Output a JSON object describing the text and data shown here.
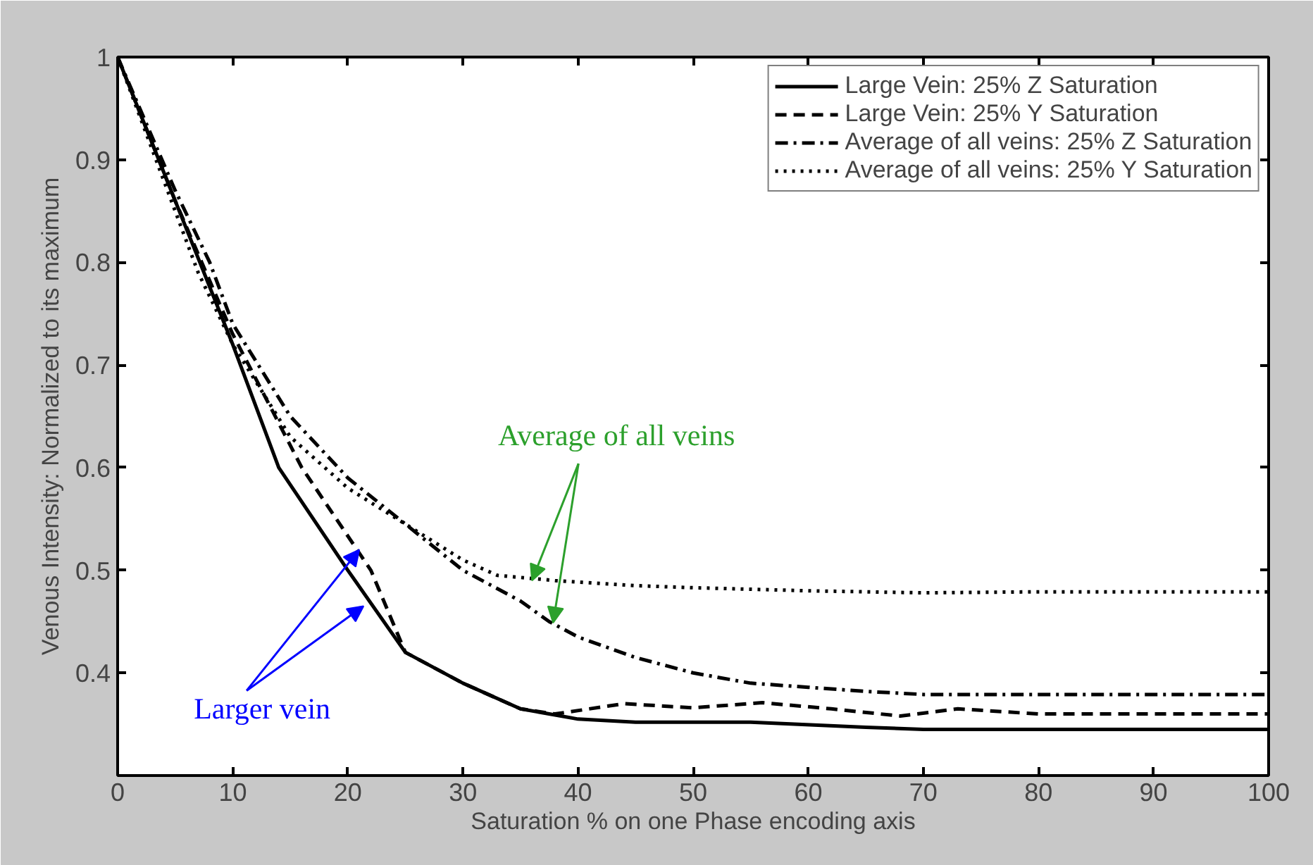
{
  "chart_data": {
    "type": "line",
    "xlabel": "Saturation % on one Phase encoding axis",
    "ylabel": "Venous Intensity: Normalized to its maximum",
    "xlim": [
      0,
      100
    ],
    "ylim": [
      0.3,
      1
    ],
    "xticks": [
      0,
      10,
      20,
      30,
      40,
      50,
      60,
      70,
      80,
      90,
      100
    ],
    "yticks": [
      {
        "value": 0.4,
        "label": "0.4"
      },
      {
        "value": 0.5,
        "label": "0.5"
      },
      {
        "value": 0.6,
        "label": "0.6"
      },
      {
        "value": 0.7,
        "label": "0.7"
      },
      {
        "value": 0.8,
        "label": "0.8"
      },
      {
        "value": 0.9,
        "label": "0.9"
      },
      {
        "value": 1,
        "label": "1"
      }
    ],
    "grid": false,
    "legend": "top right",
    "marker": "none",
    "series": [
      {
        "name": "Large Vein: 25% Z Saturation",
        "color": "#000000",
        "line_style": "solid",
        "x": [
          0,
          5,
          10,
          14,
          20,
          25,
          30,
          35,
          40,
          45,
          55,
          65,
          70,
          100
        ],
        "values": [
          1,
          0.86,
          0.72,
          0.6,
          0.5,
          0.42,
          0.39,
          0.365,
          0.355,
          0.352,
          0.352,
          0.347,
          0.345,
          0.345
        ]
      },
      {
        "name": "Large Vein: 25% Y Saturation",
        "color": "#000000",
        "line_style": "dashed",
        "x": [
          0,
          5,
          10,
          16,
          22,
          25,
          30,
          35,
          38,
          44,
          50,
          56,
          62,
          68,
          73,
          80,
          100
        ],
        "values": [
          1,
          0.86,
          0.73,
          0.6,
          0.5,
          0.42,
          0.39,
          0.365,
          0.36,
          0.37,
          0.366,
          0.371,
          0.365,
          0.358,
          0.365,
          0.36,
          0.36
        ]
      },
      {
        "name": "Average of all veins: 25% Z Saturation",
        "color": "#000000",
        "line_style": "dashdot",
        "x": [
          0,
          5,
          8,
          10,
          15,
          20,
          25,
          30,
          35,
          37.5,
          40,
          45,
          50,
          55,
          60,
          65,
          70,
          100
        ],
        "values": [
          1,
          0.87,
          0.8,
          0.74,
          0.65,
          0.59,
          0.545,
          0.5,
          0.47,
          0.45,
          0.435,
          0.415,
          0.4,
          0.39,
          0.386,
          0.382,
          0.379,
          0.379
        ]
      },
      {
        "name": "Average of all veins: 25% Y Saturation",
        "color": "#000000",
        "line_style": "dotted",
        "x": [
          0,
          5,
          7,
          10,
          15,
          20,
          25,
          30,
          33,
          38,
          45,
          50,
          60,
          70,
          80,
          100
        ],
        "values": [
          1,
          0.85,
          0.79,
          0.72,
          0.63,
          0.58,
          0.545,
          0.51,
          0.495,
          0.49,
          0.485,
          0.483,
          0.48,
          0.478,
          0.479,
          0.479
        ]
      }
    ],
    "annotations": [
      {
        "text": "Average of all veins",
        "x": 36,
        "y": 0.49
      },
      {
        "text": "Larger vein",
        "x": 21,
        "y": 0.52
      }
    ]
  }
}
